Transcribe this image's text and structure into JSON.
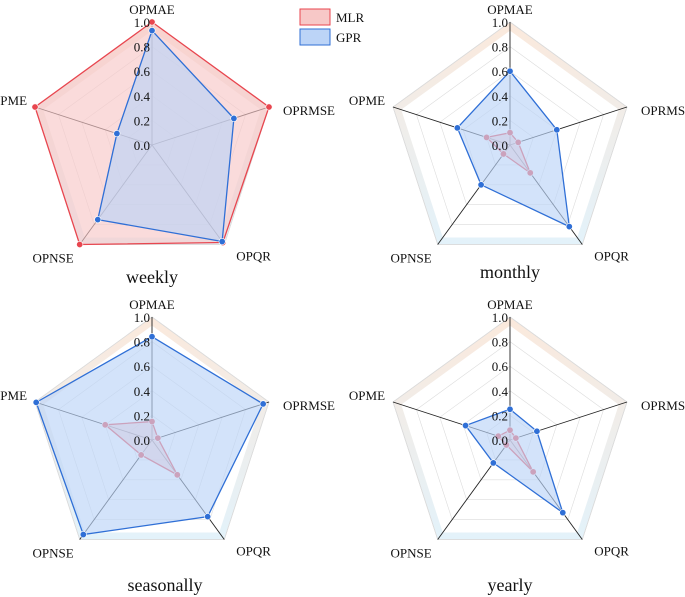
{
  "chart_data": {
    "type": "radar",
    "legend": {
      "placement": "top-center",
      "entries": [
        {
          "name": "MLR",
          "color": "#e8464f",
          "fill": "#f7c8c7"
        },
        {
          "name": "GPR",
          "color": "#2f6fd6",
          "fill": "#bcd4f7"
        }
      ]
    },
    "axes": [
      "OPMAE",
      "OPRMSE",
      "OPQR",
      "OPNSE",
      "OPME"
    ],
    "range": [
      0,
      1
    ],
    "ticks": [
      "0.0",
      "0.2",
      "0.4",
      "0.6",
      "0.8",
      "1.0"
    ],
    "panels": [
      {
        "title": "weekly",
        "series": [
          {
            "name": "MLR",
            "values": [
              1.0,
              1.0,
              0.98,
              1.0,
              1.0
            ]
          },
          {
            "name": "GPR",
            "values": [
              0.93,
              0.7,
              0.97,
              0.75,
              0.3
            ]
          }
        ]
      },
      {
        "title": "monthly",
        "series": [
          {
            "name": "MLR",
            "values": [
              0.1,
              0.07,
              0.28,
              0.09,
              0.2
            ]
          },
          {
            "name": "GPR",
            "values": [
              0.6,
              0.4,
              0.82,
              0.4,
              0.45
            ]
          }
        ]
      },
      {
        "title": "seasonally",
        "series": [
          {
            "name": "MLR",
            "values": [
              0.15,
              0.05,
              0.35,
              0.15,
              0.4
            ]
          },
          {
            "name": "GPR",
            "values": [
              0.84,
              0.95,
              0.77,
              0.95,
              0.99
            ]
          }
        ]
      },
      {
        "title": "yearly",
        "series": [
          {
            "name": "MLR",
            "values": [
              0.08,
              0.05,
              0.32,
              0.05,
              0.1
            ]
          },
          {
            "name": "GPR",
            "values": [
              0.25,
              0.23,
              0.73,
              0.23,
              0.38
            ]
          }
        ]
      }
    ]
  }
}
